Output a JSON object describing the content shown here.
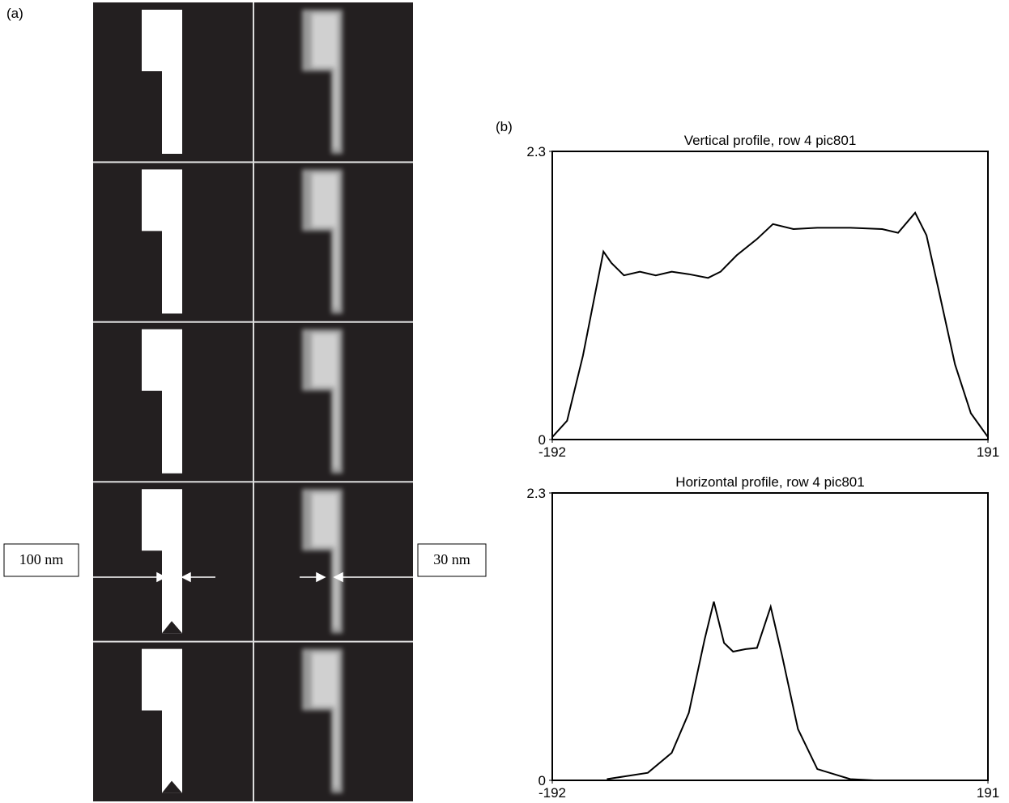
{
  "panel_labels": [
    "(a)",
    "(b)"
  ],
  "annotations": [
    "100 nm",
    "30 nm"
  ],
  "chart_data": [
    {
      "type": "line",
      "title": "Vertical profile, row 4 pic801",
      "color": "#000000",
      "x": [
        -192,
        -179,
        -165,
        -154,
        -147,
        -140,
        -129,
        -115,
        -101,
        -87,
        -72,
        -55,
        -44,
        -30,
        -12,
        2,
        20,
        41,
        70,
        98,
        112,
        127,
        137,
        148,
        162,
        176,
        191
      ],
      "values": [
        0.02,
        0.15,
        0.67,
        1.18,
        1.5,
        1.41,
        1.31,
        1.34,
        1.31,
        1.34,
        1.32,
        1.29,
        1.34,
        1.47,
        1.6,
        1.72,
        1.68,
        1.69,
        1.69,
        1.68,
        1.65,
        1.81,
        1.63,
        1.18,
        0.6,
        0.21,
        0.02
      ],
      "xlim": [
        -192,
        191
      ],
      "ylim": [
        0,
        2.3
      ],
      "xticks": [
        -192,
        191
      ],
      "yticks": [
        0,
        2.3
      ]
    },
    {
      "type": "line",
      "title": "Horizontal profile, row 4 pic801",
      "color": "#000000",
      "x": [
        -144,
        -108,
        -87,
        -72,
        -58,
        -50,
        -41,
        -33,
        -22,
        -12,
        0,
        10,
        24,
        41,
        70,
        91
      ],
      "values": [
        0.01,
        0.06,
        0.22,
        0.54,
        1.13,
        1.43,
        1.1,
        1.03,
        1.05,
        1.06,
        1.39,
        1.0,
        0.41,
        0.09,
        0.01,
        0.0
      ],
      "xlim": [
        -192,
        191
      ],
      "ylim": [
        0,
        2.3
      ],
      "xticks": [
        -192,
        191
      ],
      "yticks": [
        0,
        2.3
      ]
    }
  ]
}
